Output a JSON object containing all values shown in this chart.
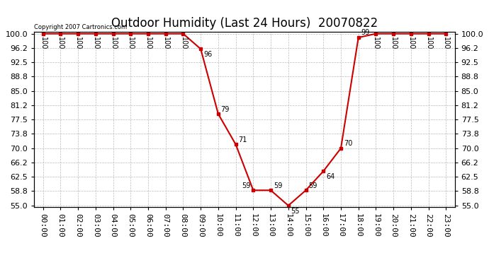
{
  "title": "Outdoor Humidity (Last 24 Hours)  20070822",
  "copyright": "Copyright 2007 Cartronics.com",
  "hours": [
    0,
    1,
    2,
    3,
    4,
    5,
    6,
    7,
    8,
    9,
    10,
    11,
    12,
    13,
    14,
    15,
    16,
    17,
    18,
    19,
    20,
    21,
    22,
    23
  ],
  "values": [
    100,
    100,
    100,
    100,
    100,
    100,
    100,
    100,
    100,
    96,
    79,
    71,
    59,
    59,
    55,
    59,
    64,
    70,
    99,
    100,
    100,
    100,
    100,
    100
  ],
  "line_color": "#cc0000",
  "marker_color": "#cc0000",
  "bg_color": "#ffffff",
  "grid_color": "#bbbbbb",
  "ylim_min": 55.0,
  "ylim_max": 100.0,
  "yticks": [
    55.0,
    58.8,
    62.5,
    66.2,
    70.0,
    73.8,
    77.5,
    81.2,
    85.0,
    88.8,
    92.5,
    96.2,
    100.0
  ],
  "title_fontsize": 12,
  "tick_label_fontsize": 8,
  "anno_fontsize": 7
}
